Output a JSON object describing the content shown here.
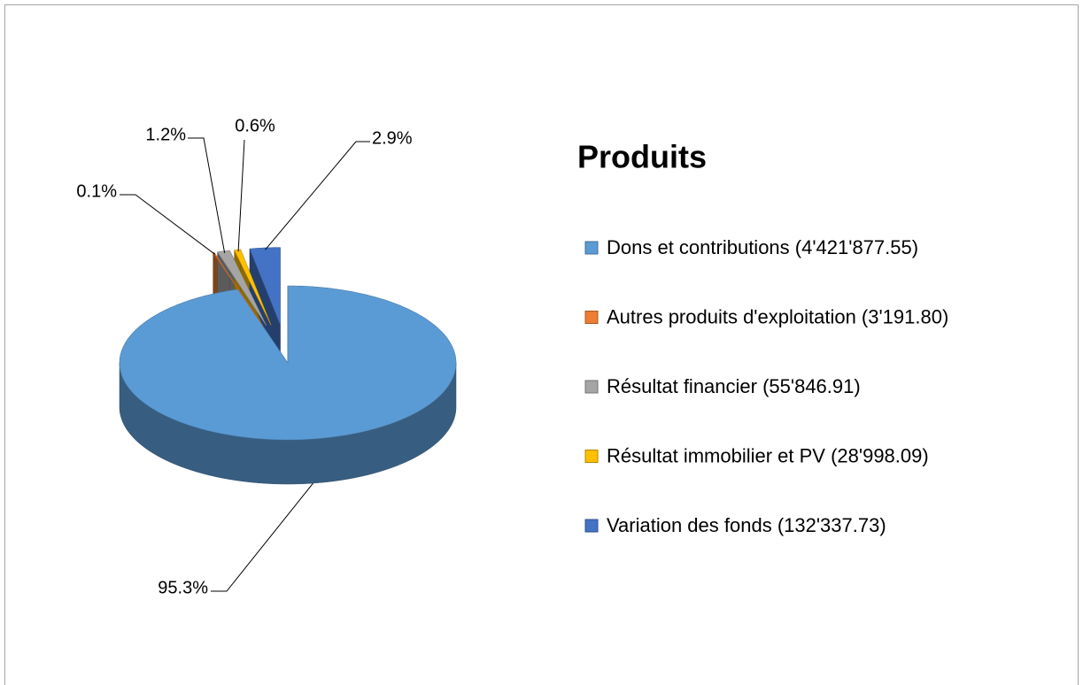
{
  "chart_data": {
    "type": "pie",
    "title": "Produits",
    "categories": [
      "Dons et contributions (4'421'877.55)",
      "Autres produits d'exploitation (3'191.80)",
      "Résultat financier (55'846.91)",
      "Résultat immobilier et PV (28'998.09)",
      "Variation des fonds (132'337.73)"
    ],
    "values": [
      95.3,
      0.1,
      1.2,
      0.6,
      2.9
    ],
    "value_labels": [
      "95.3%",
      "0.1%",
      "1.2%",
      "0.6%",
      "2.9%"
    ],
    "colors": [
      "#5b9bd5",
      "#ed7d31",
      "#a5a5a5",
      "#ffc000",
      "#4472c4"
    ],
    "legend": "right"
  }
}
